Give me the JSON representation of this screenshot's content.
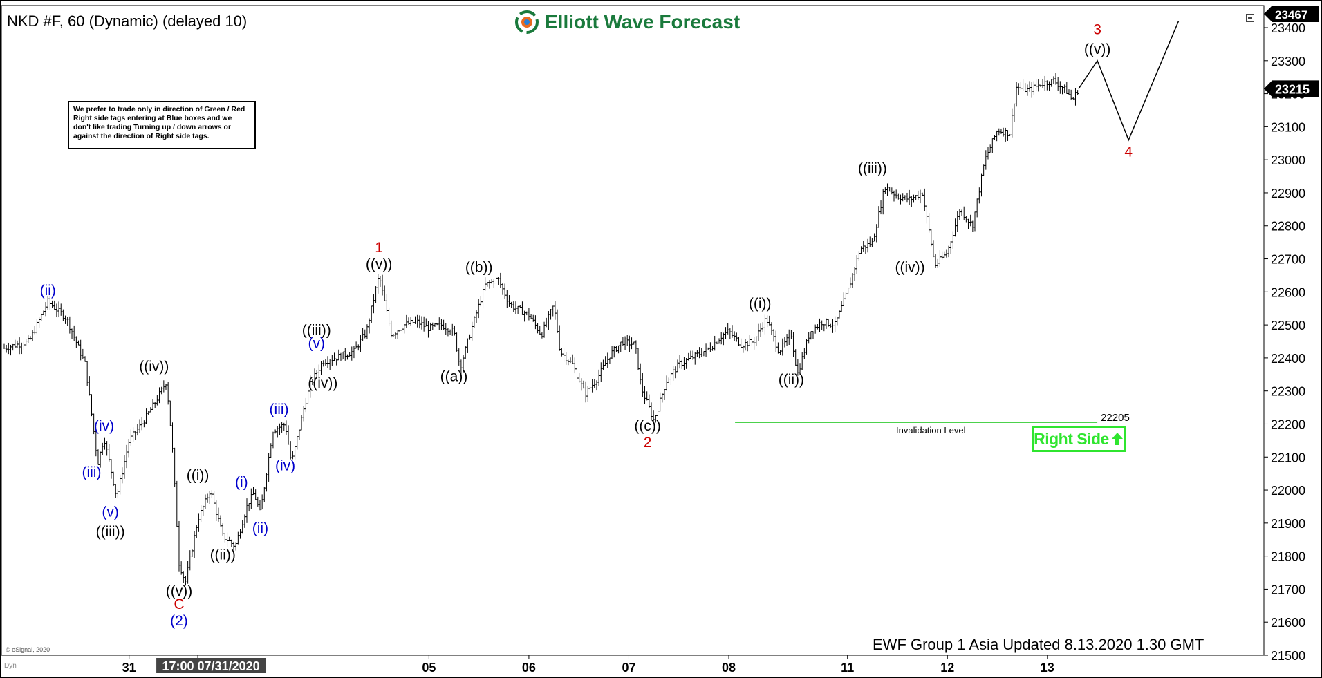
{
  "header": {
    "title": "NKD #F, 60 (Dynamic) (delayed 10)",
    "logo_text": "Elliott Wave Forecast"
  },
  "note": {
    "text": "We prefer to trade only in direction of Green / Red Right side tags entering at Blue boxes and we don't like trading Turning up / down arrows or against the direction of Right side tags."
  },
  "right_side_tag": {
    "label": "Right Side",
    "arrow": "up-arrow-icon",
    "color": "#2fe52f"
  },
  "footer": {
    "updated": "EWF Group 1 Asia Updated 8.13.2020 1.30 GMT",
    "copyright": "© eSignal, 2020",
    "dyn": "Dyn"
  },
  "chart_data": {
    "type": "ohlc",
    "title": "NKD #F, 60 (Dynamic) (delayed 10)",
    "ylim": [
      21500,
      23467
    ],
    "y_ticks": [
      21500,
      21600,
      21700,
      21800,
      21900,
      22000,
      22100,
      22200,
      22300,
      22400,
      22500,
      22600,
      22700,
      22800,
      22900,
      23000,
      23100,
      23200,
      23300,
      23400
    ],
    "y_top_label": "23467",
    "last_price_label": "23215",
    "last_price": 23215,
    "x_labels": [
      {
        "label": "31",
        "t": 20
      },
      {
        "label": "17:00 07/31/2020",
        "t": 31,
        "highlight": true
      },
      {
        "label": "05",
        "t": 68
      },
      {
        "label": "06",
        "t": 84
      },
      {
        "label": "07",
        "t": 100
      },
      {
        "label": "08",
        "t": 116
      },
      {
        "label": "11",
        "t": 135
      },
      {
        "label": "12",
        "t": 151
      },
      {
        "label": "13",
        "t": 167
      }
    ],
    "x_range": [
      0,
      201
    ],
    "invalidation": {
      "value": 22205,
      "label": "22205",
      "text": "Invalidation Level",
      "t_start": 117,
      "t_end": 175,
      "color": "#33cc33"
    },
    "series": [
      {
        "name": "price",
        "anchors": [
          {
            "t": 0,
            "v": 22430
          },
          {
            "t": 4,
            "v": 22450
          },
          {
            "t": 7,
            "v": 22570
          },
          {
            "t": 10,
            "v": 22520
          },
          {
            "t": 13,
            "v": 22380
          },
          {
            "t": 15,
            "v": 22080
          },
          {
            "t": 16,
            "v": 22160
          },
          {
            "t": 18,
            "v": 21980
          },
          {
            "t": 20,
            "v": 22150
          },
          {
            "t": 22,
            "v": 22200
          },
          {
            "t": 24,
            "v": 22260
          },
          {
            "t": 26,
            "v": 22330
          },
          {
            "t": 27,
            "v": 22110
          },
          {
            "t": 28,
            "v": 21780
          },
          {
            "t": 29,
            "v": 21720
          },
          {
            "t": 31,
            "v": 21910
          },
          {
            "t": 33,
            "v": 22000
          },
          {
            "t": 35,
            "v": 21860
          },
          {
            "t": 37,
            "v": 21830
          },
          {
            "t": 39,
            "v": 21960
          },
          {
            "t": 40,
            "v": 21990
          },
          {
            "t": 41,
            "v": 21930
          },
          {
            "t": 43,
            "v": 22180
          },
          {
            "t": 45,
            "v": 22200
          },
          {
            "t": 46,
            "v": 22080
          },
          {
            "t": 48,
            "v": 22250
          },
          {
            "t": 49,
            "v": 22320
          },
          {
            "t": 51,
            "v": 22390
          },
          {
            "t": 53,
            "v": 22400
          },
          {
            "t": 56,
            "v": 22420
          },
          {
            "t": 58,
            "v": 22480
          },
          {
            "t": 60,
            "v": 22650
          },
          {
            "t": 62,
            "v": 22470
          },
          {
            "t": 64,
            "v": 22500
          },
          {
            "t": 66,
            "v": 22510
          },
          {
            "t": 68,
            "v": 22490
          },
          {
            "t": 70,
            "v": 22500
          },
          {
            "t": 72,
            "v": 22480
          },
          {
            "t": 73,
            "v": 22370
          },
          {
            "t": 75,
            "v": 22500
          },
          {
            "t": 77,
            "v": 22620
          },
          {
            "t": 79,
            "v": 22640
          },
          {
            "t": 81,
            "v": 22560
          },
          {
            "t": 84,
            "v": 22530
          },
          {
            "t": 86,
            "v": 22470
          },
          {
            "t": 88,
            "v": 22560
          },
          {
            "t": 89,
            "v": 22420
          },
          {
            "t": 91,
            "v": 22380
          },
          {
            "t": 93,
            "v": 22290
          },
          {
            "t": 95,
            "v": 22340
          },
          {
            "t": 97,
            "v": 22410
          },
          {
            "t": 99,
            "v": 22450
          },
          {
            "t": 101,
            "v": 22440
          },
          {
            "t": 102,
            "v": 22310
          },
          {
            "t": 104,
            "v": 22210
          },
          {
            "t": 106,
            "v": 22330
          },
          {
            "t": 108,
            "v": 22380
          },
          {
            "t": 110,
            "v": 22400
          },
          {
            "t": 113,
            "v": 22430
          },
          {
            "t": 115,
            "v": 22470
          },
          {
            "t": 116,
            "v": 22480
          },
          {
            "t": 118,
            "v": 22440
          },
          {
            "t": 120,
            "v": 22450
          },
          {
            "t": 122,
            "v": 22520
          },
          {
            "t": 124,
            "v": 22420
          },
          {
            "t": 126,
            "v": 22470
          },
          {
            "t": 127,
            "v": 22350
          },
          {
            "t": 129,
            "v": 22480
          },
          {
            "t": 131,
            "v": 22510
          },
          {
            "t": 133,
            "v": 22500
          },
          {
            "t": 135,
            "v": 22600
          },
          {
            "t": 137,
            "v": 22730
          },
          {
            "t": 139,
            "v": 22750
          },
          {
            "t": 141,
            "v": 22920
          },
          {
            "t": 143,
            "v": 22890
          },
          {
            "t": 145,
            "v": 22880
          },
          {
            "t": 147,
            "v": 22900
          },
          {
            "t": 149,
            "v": 22680
          },
          {
            "t": 151,
            "v": 22720
          },
          {
            "t": 153,
            "v": 22850
          },
          {
            "t": 155,
            "v": 22800
          },
          {
            "t": 157,
            "v": 23000
          },
          {
            "t": 159,
            "v": 23090
          },
          {
            "t": 161,
            "v": 23080
          },
          {
            "t": 162,
            "v": 23220
          },
          {
            "t": 164,
            "v": 23210
          },
          {
            "t": 166,
            "v": 23230
          },
          {
            "t": 168,
            "v": 23240
          },
          {
            "t": 170,
            "v": 23210
          },
          {
            "t": 171,
            "v": 23180
          },
          {
            "t": 172,
            "v": 23215
          }
        ]
      }
    ],
    "projection": [
      {
        "t": 172,
        "v": 23215
      },
      {
        "t": 175,
        "v": 23300
      },
      {
        "t": 180,
        "v": 23060
      },
      {
        "t": 188,
        "v": 23420
      }
    ],
    "wave_labels": [
      {
        "text": "(ii)",
        "t": 7,
        "v": 22590,
        "color": "#0000cc"
      },
      {
        "text": "(iii)",
        "t": 14,
        "v": 22040,
        "color": "#0000cc"
      },
      {
        "text": "(iv)",
        "t": 16,
        "v": 22180,
        "color": "#0000cc"
      },
      {
        "text": "(v)",
        "t": 17,
        "v": 21920,
        "color": "#0000cc"
      },
      {
        "text": "((iii))",
        "t": 17,
        "v": 21860,
        "color": "#000000"
      },
      {
        "text": "((iv))",
        "t": 24,
        "v": 22360,
        "color": "#000000"
      },
      {
        "text": "((i))",
        "t": 31,
        "v": 22030,
        "color": "#000000"
      },
      {
        "text": "(i)",
        "t": 38,
        "v": 22010,
        "color": "#0000cc"
      },
      {
        "text": "((ii))",
        "t": 35,
        "v": 21790,
        "color": "#000000"
      },
      {
        "text": "(ii)",
        "t": 41,
        "v": 21870,
        "color": "#0000cc"
      },
      {
        "text": "(iii)",
        "t": 44,
        "v": 22230,
        "color": "#0000cc"
      },
      {
        "text": "(iv)",
        "t": 45,
        "v": 22060,
        "color": "#0000cc"
      },
      {
        "text": "((iii))",
        "t": 50,
        "v": 22470,
        "color": "#000000"
      },
      {
        "text": "(v)",
        "t": 50,
        "v": 22430,
        "color": "#0000cc"
      },
      {
        "text": "((iv))",
        "t": 51,
        "v": 22310,
        "color": "#000000"
      },
      {
        "text": "((v))",
        "t": 28,
        "v": 21680,
        "color": "#000000"
      },
      {
        "text": "C",
        "t": 28,
        "v": 21640,
        "color": "#cc0000"
      },
      {
        "text": "(2)",
        "t": 28,
        "v": 21590,
        "color": "#0000cc"
      },
      {
        "text": "1",
        "t": 60,
        "v": 22720,
        "color": "#cc0000"
      },
      {
        "text": "((v))",
        "t": 60,
        "v": 22670,
        "color": "#000000"
      },
      {
        "text": "((a))",
        "t": 72,
        "v": 22330,
        "color": "#000000"
      },
      {
        "text": "((b))",
        "t": 76,
        "v": 22660,
        "color": "#000000"
      },
      {
        "text": "((c))",
        "t": 103,
        "v": 22180,
        "color": "#000000"
      },
      {
        "text": "2",
        "t": 103,
        "v": 22130,
        "color": "#cc0000"
      },
      {
        "text": "((i))",
        "t": 121,
        "v": 22550,
        "color": "#000000"
      },
      {
        "text": "((ii))",
        "t": 126,
        "v": 22320,
        "color": "#000000"
      },
      {
        "text": "((iii))",
        "t": 139,
        "v": 22960,
        "color": "#000000"
      },
      {
        "text": "((iv))",
        "t": 145,
        "v": 22660,
        "color": "#000000"
      },
      {
        "text": "3",
        "t": 175,
        "v": 23380,
        "color": "#cc0000"
      },
      {
        "text": "((v))",
        "t": 175,
        "v": 23320,
        "color": "#000000"
      },
      {
        "text": "4",
        "t": 180,
        "v": 23010,
        "color": "#cc0000"
      }
    ]
  }
}
